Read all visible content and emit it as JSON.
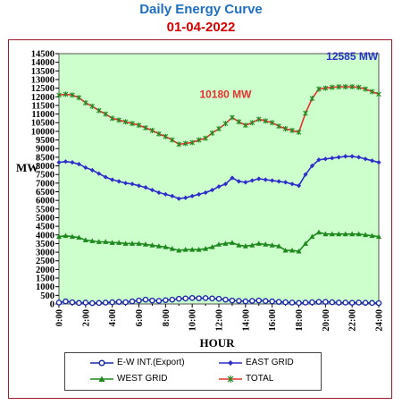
{
  "title": "Daily Energy Curve",
  "subtitle": "01-04-2022",
  "colors": {
    "title": "#1f6fc0",
    "subtitle": "#d40000",
    "frame": "#9b1b2a",
    "plot_bg": "#ccffcc",
    "total": "#e53232",
    "east": "#2e2ec8",
    "west": "#1e8a1e",
    "ew": "#1a2aa8"
  },
  "chart_data": {
    "type": "line",
    "xlabel": "HOUR",
    "ylabel": "MW",
    "ylim": [
      0,
      14500
    ],
    "xlim": [
      0,
      24
    ],
    "yticks": [
      "0",
      "500",
      "1000",
      "1500",
      "2000",
      "2500",
      "3000",
      "3500",
      "4000",
      "4500",
      "5000",
      "5500",
      "6000",
      "6500",
      "7000",
      "7500",
      "8000",
      "8500",
      "9000",
      "9500",
      "10000",
      "10500",
      "11000",
      "11500",
      "12000",
      "12500",
      "13000",
      "13500",
      "14000",
      "14500"
    ],
    "xticks": [
      "0:00",
      "2:00",
      "4:00",
      "6:00",
      "8:00",
      "10:00",
      "12:00",
      "14:00",
      "16:00",
      "18:00",
      "20:00",
      "22:00",
      "24:00"
    ],
    "grid": false,
    "legend_position": "bottom",
    "x": [
      0,
      0.5,
      1,
      1.5,
      2,
      2.5,
      3,
      3.5,
      4,
      4.5,
      5,
      5.5,
      6,
      6.5,
      7,
      7.5,
      8,
      8.5,
      9,
      9.5,
      10,
      10.5,
      11,
      11.5,
      12,
      12.5,
      13,
      13.5,
      14,
      14.5,
      15,
      15.5,
      16,
      16.5,
      17,
      17.5,
      18,
      18.5,
      19,
      19.5,
      20,
      20.5,
      21,
      21.5,
      22,
      22.5,
      23,
      23.5,
      24
    ],
    "series": [
      {
        "name": "E-W INT.(Export)",
        "marker": "circle",
        "values": [
          80,
          150,
          100,
          60,
          80,
          50,
          60,
          80,
          100,
          120,
          100,
          150,
          200,
          250,
          200,
          180,
          220,
          250,
          300,
          320,
          350,
          330,
          340,
          320,
          300,
          250,
          200,
          180,
          150,
          180,
          200,
          170,
          150,
          120,
          100,
          80,
          60,
          80,
          100,
          120,
          120,
          100,
          80,
          80,
          70,
          80,
          70,
          60,
          50
        ]
      },
      {
        "name": "EAST GRID",
        "marker": "diamond",
        "values": [
          8200,
          8250,
          8200,
          8100,
          7900,
          7750,
          7550,
          7350,
          7200,
          7100,
          7000,
          6950,
          6850,
          6750,
          6600,
          6450,
          6350,
          6250,
          6100,
          6150,
          6250,
          6350,
          6450,
          6600,
          6800,
          6950,
          7300,
          7100,
          7050,
          7150,
          7250,
          7200,
          7150,
          7100,
          7050,
          6950,
          6850,
          7500,
          8000,
          8350,
          8400,
          8450,
          8500,
          8550,
          8550,
          8500,
          8400,
          8300,
          8200
        ]
      },
      {
        "name": "WEST GRID",
        "marker": "triangle",
        "values": [
          3900,
          3950,
          3900,
          3850,
          3700,
          3650,
          3600,
          3600,
          3550,
          3550,
          3500,
          3500,
          3500,
          3450,
          3400,
          3350,
          3300,
          3200,
          3100,
          3150,
          3150,
          3150,
          3200,
          3300,
          3450,
          3500,
          3550,
          3400,
          3350,
          3400,
          3500,
          3450,
          3400,
          3350,
          3100,
          3100,
          3050,
          3500,
          3900,
          4150,
          4050,
          4050,
          4050,
          4050,
          4050,
          4050,
          4000,
          3950,
          3900
        ]
      },
      {
        "name": "TOTAL",
        "marker": "star",
        "values": [
          12100,
          12150,
          12100,
          11950,
          11650,
          11450,
          11200,
          11000,
          10750,
          10650,
          10550,
          10450,
          10350,
          10200,
          10050,
          9850,
          9700,
          9500,
          9250,
          9300,
          9350,
          9500,
          9600,
          9900,
          10150,
          10450,
          10800,
          10550,
          10350,
          10500,
          10700,
          10600,
          10500,
          10300,
          10150,
          10050,
          9950,
          11050,
          11900,
          12450,
          12500,
          12550,
          12580,
          12580,
          12585,
          12550,
          12450,
          12300,
          12150
        ]
      }
    ],
    "annotations": [
      {
        "text": "10180 MW",
        "x": 12.5,
        "y": 10180,
        "color": "#e53232"
      },
      {
        "text": "12585 MW",
        "x": 22,
        "y": 12585,
        "color": "#2e2ec8"
      }
    ]
  }
}
